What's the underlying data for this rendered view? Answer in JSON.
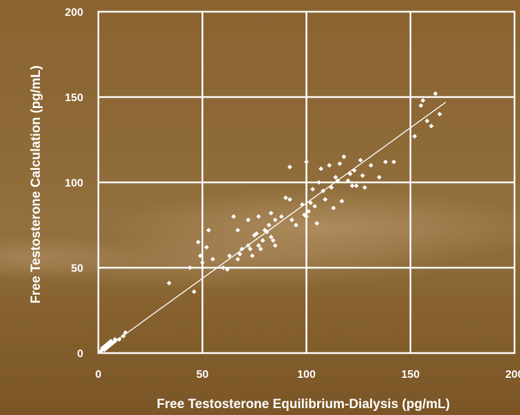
{
  "chart_data": {
    "type": "scatter",
    "xlabel": "Free Testosterone Equilibrium-Dialysis (pg/mL)",
    "ylabel": "Free Testosterone Calculation (pg/mL)",
    "xlim": [
      0,
      200
    ],
    "ylim": [
      0,
      200
    ],
    "x_ticks": [
      "0",
      "50",
      "100",
      "150",
      "200"
    ],
    "y_ticks": [
      "0",
      "50",
      "100",
      "150",
      "200"
    ],
    "grid": true,
    "colors": {
      "points": "#ffffff",
      "grid": "#ffffff",
      "background": "#8e6a38"
    },
    "regression_line": {
      "x": [
        1,
        167
      ],
      "y": [
        0.5,
        147
      ]
    },
    "series": [
      {
        "points": [
          [
            1,
            1
          ],
          [
            2,
            2
          ],
          [
            2,
            3
          ],
          [
            3,
            2
          ],
          [
            3,
            4
          ],
          [
            4,
            3
          ],
          [
            4,
            5
          ],
          [
            5,
            4
          ],
          [
            5,
            6
          ],
          [
            6,
            5
          ],
          [
            6,
            7
          ],
          [
            7,
            6
          ],
          [
            8,
            7
          ],
          [
            8,
            8
          ],
          [
            10,
            8
          ],
          [
            12,
            10
          ],
          [
            13,
            12
          ],
          [
            34,
            41
          ],
          [
            44,
            50
          ],
          [
            46,
            36
          ],
          [
            48,
            65
          ],
          [
            49,
            57
          ],
          [
            50,
            53
          ],
          [
            52,
            62
          ],
          [
            53,
            72
          ],
          [
            55,
            55
          ],
          [
            60,
            50
          ],
          [
            62,
            49
          ],
          [
            63,
            57
          ],
          [
            65,
            80
          ],
          [
            67,
            72
          ],
          [
            67,
            55
          ],
          [
            68,
            58
          ],
          [
            69,
            61
          ],
          [
            72,
            63
          ],
          [
            72,
            78
          ],
          [
            73,
            61
          ],
          [
            74,
            57
          ],
          [
            75,
            69
          ],
          [
            76,
            70
          ],
          [
            77,
            80
          ],
          [
            77,
            63
          ],
          [
            78,
            61
          ],
          [
            79,
            66
          ],
          [
            80,
            72
          ],
          [
            81,
            71
          ],
          [
            82,
            75
          ],
          [
            83,
            68
          ],
          [
            83,
            82
          ],
          [
            84,
            66
          ],
          [
            85,
            78
          ],
          [
            85,
            63
          ],
          [
            88,
            80
          ],
          [
            90,
            91
          ],
          [
            92,
            109
          ],
          [
            92,
            90
          ],
          [
            93,
            78
          ],
          [
            95,
            75
          ],
          [
            98,
            87
          ],
          [
            99,
            81
          ],
          [
            100,
            112
          ],
          [
            100,
            80
          ],
          [
            101,
            83
          ],
          [
            102,
            88
          ],
          [
            103,
            96
          ],
          [
            104,
            86
          ],
          [
            105,
            76
          ],
          [
            106,
            100
          ],
          [
            107,
            108
          ],
          [
            108,
            95
          ],
          [
            109,
            90
          ],
          [
            111,
            110
          ],
          [
            112,
            97
          ],
          [
            113,
            85
          ],
          [
            114,
            103
          ],
          [
            115,
            101
          ],
          [
            116,
            111
          ],
          [
            117,
            89
          ],
          [
            118,
            115
          ],
          [
            120,
            101
          ],
          [
            121,
            105
          ],
          [
            122,
            98
          ],
          [
            123,
            107
          ],
          [
            124,
            98
          ],
          [
            126,
            113
          ],
          [
            127,
            104
          ],
          [
            128,
            97
          ],
          [
            131,
            110
          ],
          [
            135,
            103
          ],
          [
            138,
            112
          ],
          [
            142,
            112
          ],
          [
            152,
            127
          ],
          [
            155,
            145
          ],
          [
            156,
            148
          ],
          [
            158,
            136
          ],
          [
            160,
            133
          ],
          [
            162,
            152
          ],
          [
            164,
            140
          ]
        ]
      }
    ]
  }
}
